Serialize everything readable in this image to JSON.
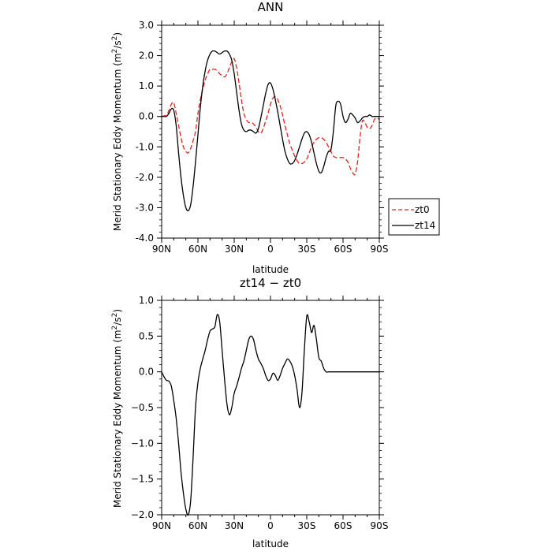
{
  "chart_data": [
    {
      "type": "line",
      "title": "ANN",
      "xlabel": "latitude",
      "ylabel": "Merid Stationary Eddy Momentum (m²/s²)",
      "ylabel_main": "Merid Stationary Eddy Momentum (m",
      "ylabel_tail": "/s",
      "ylabel_close": ")",
      "ylabel_sup": "2",
      "xlim": [
        90,
        -90
      ],
      "ylim": [
        -4.0,
        3.0
      ],
      "xticks": [
        {
          "value": 90,
          "label": "90N"
        },
        {
          "value": 60,
          "label": "60N"
        },
        {
          "value": 30,
          "label": "30N"
        },
        {
          "value": 0,
          "label": "0"
        },
        {
          "value": -30,
          "label": "30S"
        },
        {
          "value": -60,
          "label": "60S"
        },
        {
          "value": -90,
          "label": "90S"
        }
      ],
      "yticks": [
        {
          "value": 3.0,
          "label": "3.0"
        },
        {
          "value": 2.0,
          "label": "2.0"
        },
        {
          "value": 1.0,
          "label": "1.0"
        },
        {
          "value": 0.0,
          "label": "0.0"
        },
        {
          "value": -1.0,
          "label": "-1.0"
        },
        {
          "value": -2.0,
          "label": "-2.0"
        },
        {
          "value": -3.0,
          "label": "-3.0"
        },
        {
          "value": -4.0,
          "label": "-4.0"
        }
      ],
      "legend": "right",
      "series": [
        {
          "name": "zt0",
          "color": "#e8201a",
          "dash": "dashed",
          "x": [
            90,
            86,
            84,
            82,
            80,
            78,
            76,
            74,
            72,
            70,
            68,
            66,
            64,
            62,
            60,
            58,
            56,
            54,
            52,
            50,
            48,
            46,
            44,
            42,
            40,
            38,
            36,
            34,
            32,
            30,
            28,
            26,
            24,
            22,
            20,
            18,
            16,
            14,
            12,
            10,
            8,
            6,
            4,
            2,
            0,
            -2,
            -4,
            -6,
            -8,
            -10,
            -12,
            -14,
            -16,
            -18,
            -20,
            -22,
            -24,
            -26,
            -28,
            -30,
            -32,
            -34,
            -36,
            -38,
            -40,
            -42,
            -44,
            -46,
            -48,
            -50,
            -52,
            -54,
            -56,
            -58,
            -60,
            -62,
            -64,
            -66,
            -68,
            -70,
            -72,
            -74,
            -76,
            -78,
            -80,
            -82,
            -84,
            -86,
            -88,
            -90
          ],
          "y": [
            0.0,
            0.05,
            0.2,
            0.4,
            0.45,
            0.1,
            -0.3,
            -0.7,
            -1.0,
            -1.15,
            -1.2,
            -1.05,
            -0.8,
            -0.5,
            0.1,
            0.55,
            0.9,
            1.2,
            1.4,
            1.55,
            1.55,
            1.55,
            1.5,
            1.4,
            1.35,
            1.3,
            1.4,
            1.6,
            1.8,
            1.9,
            1.6,
            1.1,
            0.55,
            0.1,
            -0.1,
            -0.2,
            -0.2,
            -0.25,
            -0.35,
            -0.5,
            -0.55,
            -0.4,
            -0.15,
            0.1,
            0.4,
            0.6,
            0.65,
            0.55,
            0.35,
            0.05,
            -0.3,
            -0.6,
            -0.9,
            -1.1,
            -1.3,
            -1.45,
            -1.55,
            -1.55,
            -1.5,
            -1.4,
            -1.2,
            -1.0,
            -0.85,
            -0.75,
            -0.7,
            -0.7,
            -0.75,
            -0.85,
            -1.0,
            -1.15,
            -1.3,
            -1.35,
            -1.35,
            -1.35,
            -1.35,
            -1.4,
            -1.5,
            -1.7,
            -1.85,
            -1.9,
            -1.5,
            -0.7,
            -0.15,
            -0.2,
            -0.35,
            -0.4,
            -0.3,
            -0.1,
            -0.05,
            -0.1
          ]
        },
        {
          "name": "zt14",
          "color": "#000000",
          "dash": "solid",
          "x": [
            90,
            88,
            86,
            84,
            82,
            80,
            78,
            76,
            74,
            72,
            70,
            68,
            66,
            64,
            62,
            60,
            58,
            56,
            54,
            52,
            50,
            48,
            46,
            44,
            42,
            40,
            38,
            36,
            34,
            32,
            30,
            28,
            26,
            24,
            22,
            20,
            18,
            16,
            14,
            12,
            10,
            8,
            6,
            4,
            2,
            0,
            -2,
            -4,
            -6,
            -8,
            -10,
            -12,
            -14,
            -16,
            -18,
            -20,
            -22,
            -24,
            -26,
            -28,
            -30,
            -32,
            -34,
            -36,
            -38,
            -40,
            -42,
            -44,
            -46,
            -48,
            -50,
            -52,
            -54,
            -56,
            -58,
            -60,
            -62,
            -64,
            -66,
            -68,
            -70,
            -72,
            -74,
            -76,
            -78,
            -80,
            -82,
            -84,
            -86,
            -88,
            -90
          ],
          "y": [
            0.0,
            0.0,
            0.0,
            0.1,
            0.25,
            0.2,
            -0.3,
            -1.2,
            -2.0,
            -2.6,
            -3.0,
            -3.1,
            -2.9,
            -2.3,
            -1.5,
            -0.6,
            0.3,
            1.0,
            1.5,
            1.85,
            2.05,
            2.15,
            2.15,
            2.1,
            2.05,
            2.1,
            2.15,
            2.15,
            2.05,
            1.85,
            1.4,
            0.8,
            0.2,
            -0.25,
            -0.45,
            -0.5,
            -0.45,
            -0.45,
            -0.5,
            -0.55,
            -0.4,
            -0.05,
            0.35,
            0.75,
            1.05,
            1.1,
            0.9,
            0.55,
            0.15,
            -0.3,
            -0.75,
            -1.15,
            -1.4,
            -1.55,
            -1.55,
            -1.45,
            -1.25,
            -1.0,
            -0.75,
            -0.55,
            -0.5,
            -0.6,
            -0.85,
            -1.2,
            -1.55,
            -1.8,
            -1.85,
            -1.65,
            -1.35,
            -1.15,
            -1.1,
            -0.5,
            0.35,
            0.5,
            0.4,
            0.0,
            -0.2,
            -0.1,
            0.1,
            0.05,
            -0.05,
            -0.2,
            -0.15,
            -0.05,
            0.0,
            0.0,
            0.05,
            0.0,
            0.0,
            0.0,
            0.0
          ]
        }
      ]
    },
    {
      "type": "line",
      "title": "zt14 − zt0",
      "xlabel": "latitude",
      "ylabel": "Merid Stationary Eddy Momentum (m²/s²)",
      "ylabel_main": "Merid Stationary Eddy Momentum (m",
      "ylabel_tail": "/s",
      "ylabel_close": ")",
      "ylabel_sup": "2",
      "xlim": [
        90,
        -90
      ],
      "ylim": [
        -2.0,
        1.0
      ],
      "xticks": [
        {
          "value": 90,
          "label": "90N"
        },
        {
          "value": 60,
          "label": "60N"
        },
        {
          "value": 30,
          "label": "30N"
        },
        {
          "value": 0,
          "label": "0"
        },
        {
          "value": -30,
          "label": "30S"
        },
        {
          "value": -60,
          "label": "60S"
        },
        {
          "value": -90,
          "label": "90S"
        }
      ],
      "yticks": [
        {
          "value": 1.0,
          "label": "1.0"
        },
        {
          "value": 0.5,
          "label": "0.5"
        },
        {
          "value": 0.0,
          "label": "0.0"
        },
        {
          "value": -0.5,
          "label": "−0.5"
        },
        {
          "value": -1.0,
          "label": "−1.0"
        },
        {
          "value": -1.5,
          "label": "−1.5"
        },
        {
          "value": -2.0,
          "label": "−2.0"
        }
      ],
      "series": [
        {
          "color": "#000000",
          "dash": "solid",
          "x": [
            90,
            88,
            86,
            84,
            82,
            80,
            78,
            76,
            74,
            72,
            70,
            68,
            66,
            64,
            62,
            60,
            58,
            56,
            54,
            52,
            50,
            48,
            46,
            44,
            42,
            40,
            38,
            36,
            34,
            32,
            30,
            28,
            26,
            24,
            22,
            20,
            18,
            16,
            14,
            12,
            10,
            8,
            6,
            4,
            2,
            0,
            -2,
            -4,
            -6,
            -8,
            -10,
            -12,
            -14,
            -16,
            -18,
            -20,
            -22,
            -24,
            -26,
            -28,
            -30,
            -32,
            -34,
            -36,
            -38,
            -40,
            -42,
            -44,
            -46,
            -48,
            -50,
            -52,
            -54,
            -56,
            -58,
            -60,
            -62,
            -64,
            -66,
            -68,
            -70,
            -72,
            -74,
            -76,
            -78,
            -80,
            -82,
            -84,
            -86,
            -88,
            -90
          ],
          "y": [
            0.0,
            -0.07,
            -0.12,
            -0.13,
            -0.2,
            -0.4,
            -0.65,
            -1.0,
            -1.4,
            -1.7,
            -1.92,
            -2.0,
            -1.8,
            -1.2,
            -0.5,
            -0.15,
            0.05,
            0.18,
            0.3,
            0.45,
            0.57,
            0.6,
            0.63,
            0.8,
            0.7,
            0.3,
            -0.1,
            -0.45,
            -0.6,
            -0.5,
            -0.3,
            -0.2,
            -0.08,
            0.05,
            0.15,
            0.3,
            0.45,
            0.5,
            0.45,
            0.3,
            0.18,
            0.12,
            0.05,
            -0.05,
            -0.12,
            -0.1,
            -0.02,
            -0.05,
            -0.12,
            -0.05,
            0.05,
            0.12,
            0.18,
            0.15,
            0.08,
            -0.05,
            -0.25,
            -0.5,
            -0.3,
            0.3,
            0.78,
            0.7,
            0.55,
            0.65,
            0.45,
            0.2,
            0.15,
            0.05,
            0.0,
            0.0,
            0.0,
            0.0,
            0.0,
            0.0,
            0.0,
            0.0,
            0.0,
            0.0,
            0.0,
            0.0,
            0.0,
            0.0,
            0.0,
            0.0,
            0.0,
            0.0,
            0.0,
            0.0,
            0.0,
            0.0,
            0.0
          ]
        }
      ]
    }
  ]
}
